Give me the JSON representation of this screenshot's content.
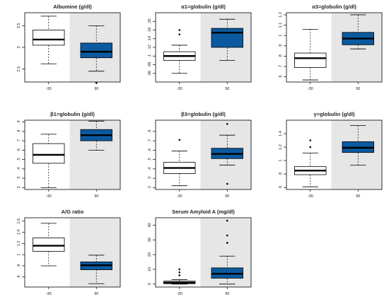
{
  "colors": {
    "box_left_fill": "#ffffff",
    "box_right_fill": "#0b5aa0",
    "shade": "#e6e6e6",
    "line": "#000000"
  },
  "chart_data": [
    {
      "type": "boxplot",
      "title": "Albumine (g/dl)",
      "categories": [
        "-30",
        "90"
      ],
      "ylim": [
        2.2,
        3.8
      ],
      "yticks": [
        2.5,
        3.0,
        3.5
      ],
      "shaded_category": "90",
      "boxes": [
        {
          "category": "-30",
          "whisker_low": 2.62,
          "q1": 3.05,
          "median": 3.18,
          "q3": 3.4,
          "whisker_high": 3.72,
          "outliers": []
        },
        {
          "category": "90",
          "whisker_low": 2.45,
          "q1": 2.76,
          "median": 2.9,
          "q3": 3.1,
          "whisker_high": 3.5,
          "outliers": [
            2.18
          ]
        }
      ]
    },
    {
      "type": "boxplot",
      "title": "α1=globulin (g/dl)",
      "categories": [
        "-30",
        "90"
      ],
      "ylim": [
        0.04,
        0.2
      ],
      "yticks": [
        0.06,
        0.08,
        0.1,
        0.12,
        0.14,
        0.16,
        0.18
      ],
      "shaded_category": "90",
      "boxes": [
        {
          "category": "-30",
          "whisker_low": 0.06,
          "q1": 0.09,
          "median": 0.1,
          "q3": 0.11,
          "whisker_high": 0.125,
          "outliers": [
            0.16,
            0.15
          ]
        },
        {
          "category": "90",
          "whisker_low": 0.09,
          "q1": 0.12,
          "median": 0.154,
          "q3": 0.164,
          "whisker_high": 0.185,
          "outliers": []
        }
      ]
    },
    {
      "type": "boxplot",
      "title": "α3=globulin (g/dl)",
      "categories": [
        "-30",
        "90"
      ],
      "ylim": [
        0.55,
        1.22
      ],
      "yticks": [
        0.6,
        0.7,
        0.8,
        0.9,
        1.0,
        1.1,
        1.2
      ],
      "shaded_category": "90",
      "boxes": [
        {
          "category": "-30",
          "whisker_low": 0.57,
          "q1": 0.69,
          "median": 0.78,
          "q3": 0.83,
          "whisker_high": 1.06,
          "outliers": []
        },
        {
          "category": "90",
          "whisker_low": 0.87,
          "q1": 0.91,
          "median": 0.97,
          "q3": 1.03,
          "whisker_high": 1.2,
          "outliers": []
        }
      ]
    },
    {
      "type": "boxplot",
      "title": "β1=globulin (g/dl)",
      "categories": [
        "-30",
        "90"
      ],
      "ylim": [
        0.18,
        0.92
      ],
      "yticks": [
        0.2,
        0.3,
        0.4,
        0.5,
        0.6,
        0.7,
        0.8,
        0.9
      ],
      "shaded_category": "90",
      "boxes": [
        {
          "category": "-30",
          "whisker_low": 0.2,
          "q1": 0.46,
          "median": 0.55,
          "q3": 0.67,
          "whisker_high": 0.77,
          "outliers": []
        },
        {
          "category": "90",
          "whisker_low": 0.6,
          "q1": 0.7,
          "median": 0.76,
          "q3": 0.82,
          "whisker_high": 0.91,
          "outliers": []
        }
      ]
    },
    {
      "type": "boxplot",
      "title": "β3=globulin (g/dl)",
      "categories": [
        "-30",
        "90"
      ],
      "ylim": [
        0.18,
        0.92
      ],
      "yticks": [
        0.2,
        0.3,
        0.4,
        0.5,
        0.6,
        0.7,
        0.8
      ],
      "shaded_category": "90",
      "boxes": [
        {
          "category": "-30",
          "whisker_low": 0.22,
          "q1": 0.35,
          "median": 0.41,
          "q3": 0.47,
          "whisker_high": 0.59,
          "outliers": [
            0.71
          ]
        },
        {
          "category": "90",
          "whisker_low": 0.44,
          "q1": 0.51,
          "median": 0.56,
          "q3": 0.62,
          "whisker_high": 0.76,
          "outliers": [
            0.88,
            0.24
          ]
        }
      ]
    },
    {
      "type": "boxplot",
      "title": "γ=globulin (g/dl)",
      "categories": [
        "-30",
        "90"
      ],
      "ylim": [
        0.57,
        1.6
      ],
      "yticks": [
        0.6,
        0.8,
        1.0,
        1.2,
        1.4
      ],
      "shaded_category": "90",
      "boxes": [
        {
          "category": "-30",
          "whisker_low": 0.61,
          "q1": 0.79,
          "median": 0.85,
          "q3": 0.91,
          "whisker_high": 1.11,
          "outliers": [
            1.3,
            1.2
          ]
        },
        {
          "category": "90",
          "whisker_low": 0.93,
          "q1": 1.12,
          "median": 1.19,
          "q3": 1.28,
          "whisker_high": 1.52,
          "outliers": []
        }
      ]
    },
    {
      "type": "boxplot",
      "title": "A/G ratio",
      "categories": [
        "-30",
        "90"
      ],
      "ylim": [
        0.42,
        1.66
      ],
      "yticks": [
        0.6,
        0.8,
        1.0,
        1.2,
        1.4,
        1.6
      ],
      "shaded_category": "90",
      "boxes": [
        {
          "category": "-30",
          "whisker_low": 0.8,
          "q1": 1.06,
          "median": 1.16,
          "q3": 1.3,
          "whisker_high": 1.56,
          "outliers": []
        },
        {
          "category": "90",
          "whisker_low": 0.48,
          "q1": 0.73,
          "median": 0.81,
          "q3": 0.87,
          "whisker_high": 0.99,
          "outliers": []
        }
      ]
    },
    {
      "type": "boxplot",
      "title": "Serum Amyloid A (mg/dl)",
      "categories": [
        "-30",
        "90"
      ],
      "ylim": [
        -2,
        45
      ],
      "yticks": [
        0,
        10,
        20,
        30,
        40
      ],
      "shaded_category": "90",
      "boxes": [
        {
          "category": "-30",
          "whisker_low": 0,
          "q1": 0.3,
          "median": 1,
          "q3": 2,
          "whisker_high": 3,
          "outliers": [
            10,
            8,
            6
          ]
        },
        {
          "category": "90",
          "whisker_low": 0,
          "q1": 4,
          "median": 7,
          "q3": 11,
          "whisker_high": 19,
          "outliers": [
            43,
            33,
            28
          ]
        }
      ]
    }
  ]
}
